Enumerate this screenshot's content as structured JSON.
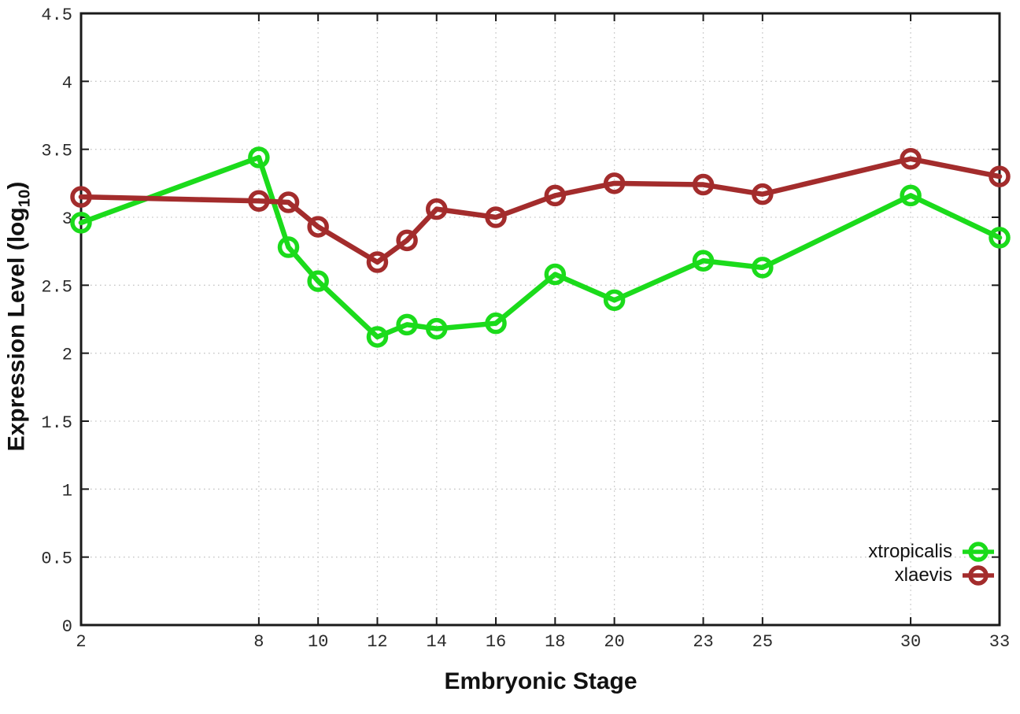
{
  "colors": {
    "background": "#ffffff",
    "border": "#1a1a1a",
    "grid": "#c6c6c6",
    "tick_text": "#2b2b2b",
    "xtropicalis": "#1bdb1b",
    "xlaevis": "#a32c2c"
  },
  "chart_data": {
    "type": "line",
    "title": "",
    "xlabel": "Embryonic Stage",
    "ylabel": "Expression Level (log10)",
    "ylabel_parts": [
      "Expression Level (log",
      "10",
      ")"
    ],
    "xlim": [
      2,
      33
    ],
    "ylim": [
      0,
      4.5
    ],
    "grid": true,
    "grid_style": "dotted",
    "legend_position": "inside bottom-right",
    "marker": "open-circle",
    "x": [
      2,
      8,
      9,
      10,
      12,
      13,
      14,
      16,
      18,
      20,
      23,
      25,
      30,
      33
    ],
    "xticks": [
      2,
      8,
      10,
      12,
      14,
      16,
      18,
      20,
      23,
      25,
      30,
      33
    ],
    "xtick_labels": [
      "2",
      "8",
      "10",
      "12",
      "14",
      "16",
      "18",
      "20",
      "23",
      "25",
      "30",
      "33"
    ],
    "yticks": [
      0,
      0.5,
      1,
      1.5,
      2,
      2.5,
      3,
      3.5,
      4,
      4.5
    ],
    "ytick_labels": [
      "0",
      "0.5",
      "1",
      "1.5",
      "2",
      "2.5",
      "3",
      "3.5",
      "4",
      "4.5"
    ],
    "series": [
      {
        "name": "xtropicalis",
        "color": "#1bdb1b",
        "values": [
          2.96,
          3.44,
          2.78,
          2.53,
          2.12,
          2.21,
          2.18,
          2.22,
          2.58,
          2.39,
          2.68,
          2.63,
          3.16,
          2.85
        ]
      },
      {
        "name": "xlaevis",
        "color": "#a32c2c",
        "values": [
          3.15,
          3.12,
          3.11,
          2.93,
          2.67,
          2.83,
          3.06,
          3.0,
          3.16,
          3.25,
          3.24,
          3.17,
          3.43,
          3.3
        ]
      }
    ]
  }
}
